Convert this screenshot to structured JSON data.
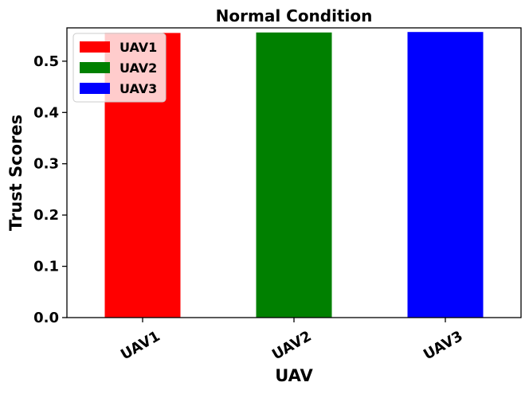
{
  "chart_data": {
    "type": "bar",
    "title": "Normal Condition",
    "xlabel": "UAV",
    "ylabel": "Trust Scores",
    "categories": [
      "UAV1",
      "UAV2",
      "UAV3"
    ],
    "values": [
      0.555,
      0.556,
      0.557
    ],
    "colors": [
      "#ff0000",
      "#008000",
      "#0000ff"
    ],
    "ylim": [
      0,
      0.565
    ],
    "yticks": [
      0.0,
      0.1,
      0.2,
      0.3,
      0.4,
      0.5
    ],
    "ytick_labels": [
      "0.0",
      "0.1",
      "0.2",
      "0.3",
      "0.4",
      "0.5"
    ],
    "xtick_rotation": -30,
    "grid": false,
    "legend": {
      "placement": "upper-left",
      "entries": [
        {
          "label": "UAV1",
          "color": "#ff0000"
        },
        {
          "label": "UAV2",
          "color": "#008000"
        },
        {
          "label": "UAV3",
          "color": "#0000ff"
        }
      ]
    }
  }
}
